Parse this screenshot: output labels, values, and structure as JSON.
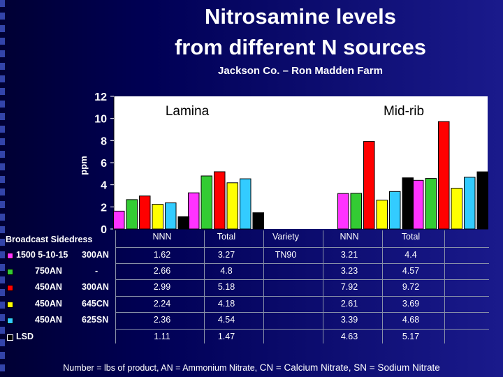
{
  "title_line1": "Nitrosamine levels",
  "title_line2": "from different N sources",
  "subtitle": "Jackson Co. – Ron Madden Farm",
  "footnote": {
    "part1": "Number = lbs of product, AN = Ammonium Nitrate, ",
    "part2": "CN = Calcium Nitrate, SN = Sodium Nitrate"
  },
  "chart_data": {
    "type": "bar",
    "ylabel": "ppm",
    "ylim": [
      0,
      12
    ],
    "yticks": [
      "0",
      "2",
      "4",
      "6",
      "8",
      "10",
      "12"
    ],
    "group_labels": [
      "Lamina",
      "Mid-rib"
    ],
    "categories": [
      "NNN",
      "Total",
      "Variety",
      "NNN",
      "Total"
    ],
    "series": [
      {
        "row_key": "r1",
        "color": "#ff33ff",
        "values": [
          1.62,
          3.27,
          null,
          3.21,
          4.4
        ]
      },
      {
        "row_key": "r2",
        "color": "#33cc33",
        "values": [
          2.66,
          4.8,
          null,
          3.23,
          4.57
        ]
      },
      {
        "row_key": "r3",
        "color": "#ff0000",
        "values": [
          2.99,
          5.18,
          null,
          7.92,
          9.72
        ]
      },
      {
        "row_key": "r4",
        "color": "#ffff00",
        "values": [
          2.24,
          4.18,
          null,
          2.61,
          3.69
        ]
      },
      {
        "row_key": "r5",
        "color": "#33ccff",
        "values": [
          2.36,
          4.54,
          null,
          3.39,
          4.68
        ]
      },
      {
        "row_key": "r6",
        "color": "#000000",
        "values": [
          1.11,
          1.47,
          null,
          4.63,
          5.17
        ]
      }
    ]
  },
  "table": {
    "header_left": "Broadcast Sidedress",
    "columns": [
      "NNN",
      "Total",
      "Variety",
      "NNN",
      "Total"
    ],
    "rows": [
      {
        "broadcast": "1500 5-10-15",
        "sidedress": "300AN",
        "cells": [
          "1.62",
          "3.27",
          "TN90",
          "3.21",
          "4.4"
        ]
      },
      {
        "broadcast": "750AN",
        "sidedress": "-",
        "cells": [
          "2.66",
          "4.8",
          "",
          "3.23",
          "4.57"
        ]
      },
      {
        "broadcast": "450AN",
        "sidedress": "300AN",
        "cells": [
          "2.99",
          "5.18",
          "",
          "7.92",
          "9.72"
        ]
      },
      {
        "broadcast": "450AN",
        "sidedress": "645CN",
        "cells": [
          "2.24",
          "4.18",
          "",
          "2.61",
          "3.69"
        ]
      },
      {
        "broadcast": "450AN",
        "sidedress": "625SN",
        "cells": [
          "2.36",
          "4.54",
          "",
          "3.39",
          "4.68"
        ]
      },
      {
        "broadcast": "LSD",
        "sidedress": "",
        "cells": [
          "1.11",
          "1.47",
          "",
          "4.63",
          "5.17"
        ]
      }
    ]
  }
}
